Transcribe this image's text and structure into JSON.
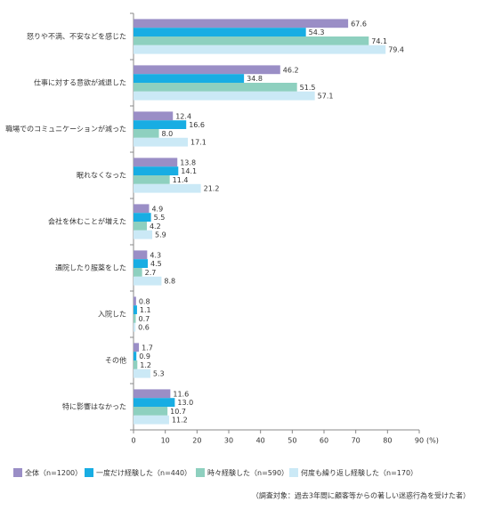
{
  "chart_data": {
    "type": "bar",
    "orientation": "horizontal",
    "categories": [
      "怒りや不満、不安などを感じた",
      "仕事に対する意欲が減退した",
      "職場でのコミュニケーションが減った",
      "眠れなくなった",
      "会社を休むことが増えた",
      "通院したり服薬をした",
      "入院した",
      "その他",
      "特に影響はなかった"
    ],
    "series": [
      {
        "name": "全体（n=1200）",
        "color": "#9a8ec6",
        "values": [
          67.6,
          46.2,
          12.4,
          13.8,
          4.9,
          4.3,
          0.8,
          1.7,
          11.6
        ],
        "value_labels": [
          "67.6",
          "46.2",
          "12.4",
          "13.8",
          "4.9",
          "4.3",
          "0.8",
          "1.7",
          "11.6"
        ]
      },
      {
        "name": "一度だけ経験した（n=440）",
        "color": "#18ade3",
        "values": [
          54.3,
          34.8,
          16.6,
          14.1,
          5.5,
          4.5,
          1.1,
          0.9,
          13.0
        ],
        "value_labels": [
          "54.3",
          "34.8",
          "16.6",
          "14.1",
          "5.5",
          "4.5",
          "1.1",
          "0.9",
          "13.0"
        ]
      },
      {
        "name": "時々経験した（n=590）",
        "color": "#8ed0bf",
        "values": [
          74.1,
          51.5,
          8.0,
          11.4,
          4.2,
          2.7,
          0.7,
          1.2,
          10.7
        ],
        "value_labels": [
          "74.1",
          "51.5",
          "8.0",
          "11.4",
          "4.2",
          "2.7",
          "0.7",
          "1.2",
          "10.7"
        ]
      },
      {
        "name": "何度も繰り返し経験した（n=170）",
        "color": "#cbe9f6",
        "values": [
          79.4,
          57.1,
          17.1,
          21.2,
          5.9,
          8.8,
          0.6,
          5.3,
          11.2
        ],
        "value_labels": [
          "79.4",
          "57.1",
          "17.1",
          "21.2",
          "5.9",
          "8.8",
          "0.6",
          "5.3",
          "11.2"
        ]
      }
    ],
    "xlim": [
      0,
      90
    ],
    "xticks": [
      0,
      10,
      20,
      30,
      40,
      50,
      60,
      70,
      80,
      90
    ],
    "x_unit": "(%)",
    "note": "（調査対象：過去3年間に顧客等からの著しい迷惑行為を受けた者）"
  }
}
